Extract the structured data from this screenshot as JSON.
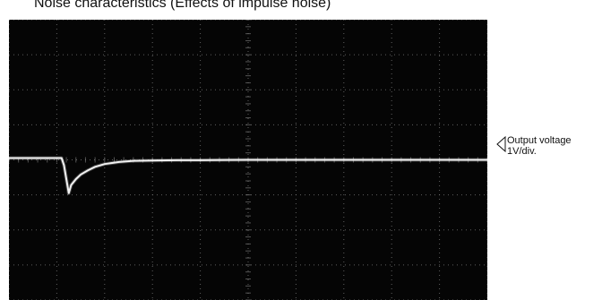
{
  "title": "Noise characteristics  (Effects of impulse noise)",
  "annotation": {
    "line1": "Output voltage",
    "line2": "1V/div.",
    "marker_icon": "left-triangle-marker-icon"
  },
  "chart_data": {
    "type": "line",
    "title": "Noise characteristics  (Effects of impulse noise)",
    "xlabel": "",
    "ylabel": "",
    "grid": true,
    "x_divisions": 10,
    "y_divisions": 8,
    "xlim": [
      0,
      10
    ],
    "ylim": [
      -4,
      4
    ],
    "series": [
      {
        "name": "",
        "x": [
          0,
          1.1,
          1.15,
          1.2,
          1.25,
          1.3,
          1.4,
          1.5,
          1.65,
          1.8,
          2.0,
          2.3,
          2.6,
          3.0,
          3.5,
          4.0,
          5.0,
          6.0,
          7.0,
          8.0,
          9.0,
          10.0
        ],
        "y": [
          0.05,
          0.05,
          -0.15,
          -0.55,
          -0.95,
          -0.72,
          -0.55,
          -0.42,
          -0.3,
          -0.2,
          -0.12,
          -0.06,
          -0.03,
          -0.02,
          -0.01,
          -0.01,
          0.0,
          0.0,
          0.0,
          0.0,
          0.0,
          0.0
        ]
      }
    ],
    "colors": {
      "background": "#050505",
      "trace": "#f2f2f2",
      "grid": "#7d7d7d",
      "text": "#111111"
    }
  }
}
